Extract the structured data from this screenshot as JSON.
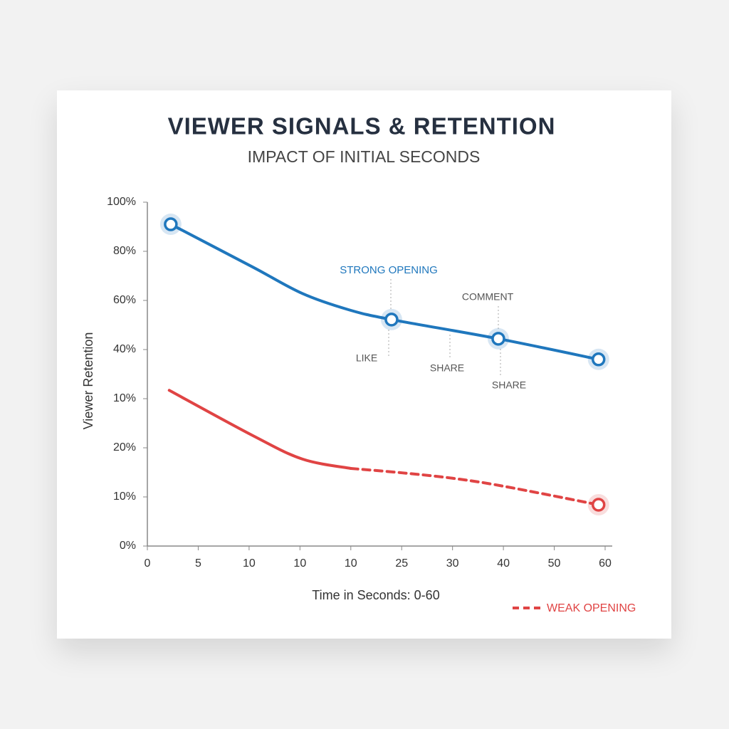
{
  "chart_data": {
    "type": "line",
    "title": "VIEWER SIGNALS & RETENTION",
    "subtitle": "IMPACT OF INITIAL SECONDS",
    "y_label": "Viewer Retention",
    "x_label": "Time in Seconds: 0-60",
    "xlim": [
      0,
      9
    ],
    "xticks": [
      {
        "value": 0,
        "label": "0"
      },
      {
        "value": 1,
        "label": "5"
      },
      {
        "value": 2,
        "label": "10"
      },
      {
        "value": 3,
        "label": "10"
      },
      {
        "value": 4,
        "label": "10"
      },
      {
        "value": 5,
        "label": "25"
      },
      {
        "value": 6,
        "label": "30"
      },
      {
        "value": 7,
        "label": "40"
      },
      {
        "value": 8,
        "label": "50"
      },
      {
        "value": 9,
        "label": "60"
      }
    ],
    "ylim": [
      0,
      7
    ],
    "yticks": [
      {
        "value": 0,
        "label": "0%"
      },
      {
        "value": 1,
        "label": "10%"
      },
      {
        "value": 2,
        "label": "20%"
      },
      {
        "value": 3,
        "label": "10%"
      },
      {
        "value": 4,
        "label": "40%"
      },
      {
        "value": 5,
        "label": "60%"
      },
      {
        "value": 6,
        "label": "80%"
      },
      {
        "value": 7,
        "label": "100%"
      }
    ],
    "series": [
      {
        "name": "STRONG OPENING",
        "color": "#1f77bd",
        "x": [
          0.46,
          2.07,
          3.05,
          3.96,
          4.8,
          6.9,
          8.87
        ],
        "values": [
          6.55,
          5.68,
          5.14,
          4.81,
          4.61,
          4.22,
          3.8
        ],
        "marker_indices": [
          0,
          4,
          5,
          6
        ]
      },
      {
        "name": "WEAK OPENING",
        "color": "#e04444",
        "x": [
          0.43,
          2.07,
          3.05,
          4.0,
          5.01,
          6.0,
          6.99,
          8.87
        ],
        "values": [
          3.17,
          2.25,
          1.77,
          1.58,
          1.49,
          1.38,
          1.22,
          0.84
        ],
        "dashed_from": 3,
        "marker_indices": [
          7
        ]
      }
    ],
    "annotations": [
      "LIKE",
      "SHARE",
      "COMMENT",
      "SHARE"
    ]
  }
}
